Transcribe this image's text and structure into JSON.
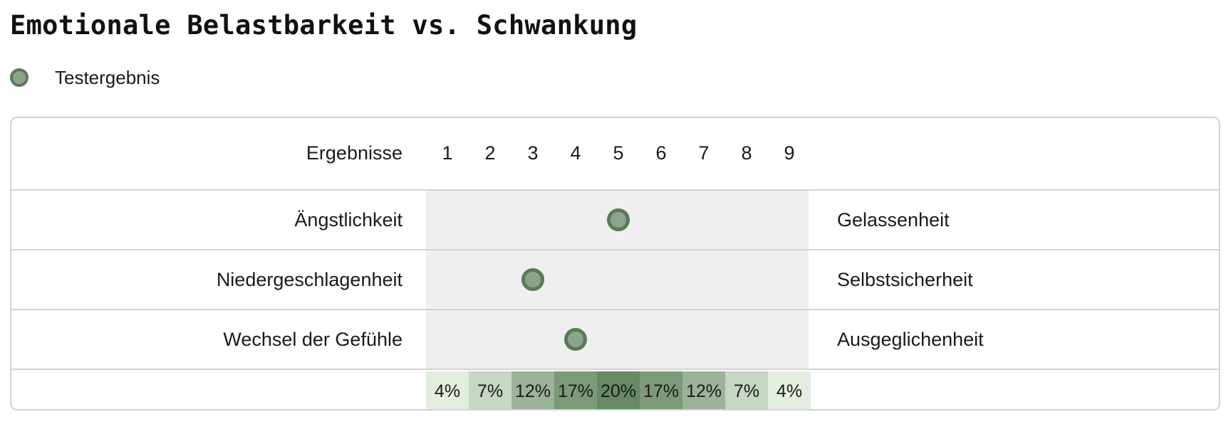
{
  "chart_data": {
    "type": "scatter",
    "title": "Emotionale Belastbarkeit vs. Schwankung",
    "legend": {
      "label": "Testergebnis",
      "position": "top-left"
    },
    "scale_header": "Ergebnisse",
    "scale": [
      "1",
      "2",
      "3",
      "4",
      "5",
      "6",
      "7",
      "8",
      "9"
    ],
    "xlim": [
      1,
      9
    ],
    "rows": [
      {
        "left": "Ängstlichkeit",
        "right": "Gelassenheit",
        "value": 5
      },
      {
        "left": "Niedergeschlagenheit",
        "right": "Selbstsicherheit",
        "value": 3
      },
      {
        "left": "Wechsel der Gefühle",
        "right": "Ausgeglichenheit",
        "value": 4
      }
    ],
    "distribution": [
      "4%",
      "7%",
      "12%",
      "17%",
      "20%",
      "17%",
      "12%",
      "7%",
      "4%"
    ],
    "distribution_values": [
      4,
      7,
      12,
      17,
      20,
      17,
      12,
      7,
      4
    ]
  },
  "colors": {
    "marker_fill": "#8ea38c",
    "marker_border": "#5b7a58",
    "plot_background": "#efefef",
    "distribution_shades": [
      "#e3ede0",
      "#c6d7c3",
      "#9cb399",
      "#7c9a79",
      "#678a64"
    ]
  },
  "icons": {
    "legend_marker": "circle-marker-icon",
    "data_marker": "circle-marker-icon"
  }
}
